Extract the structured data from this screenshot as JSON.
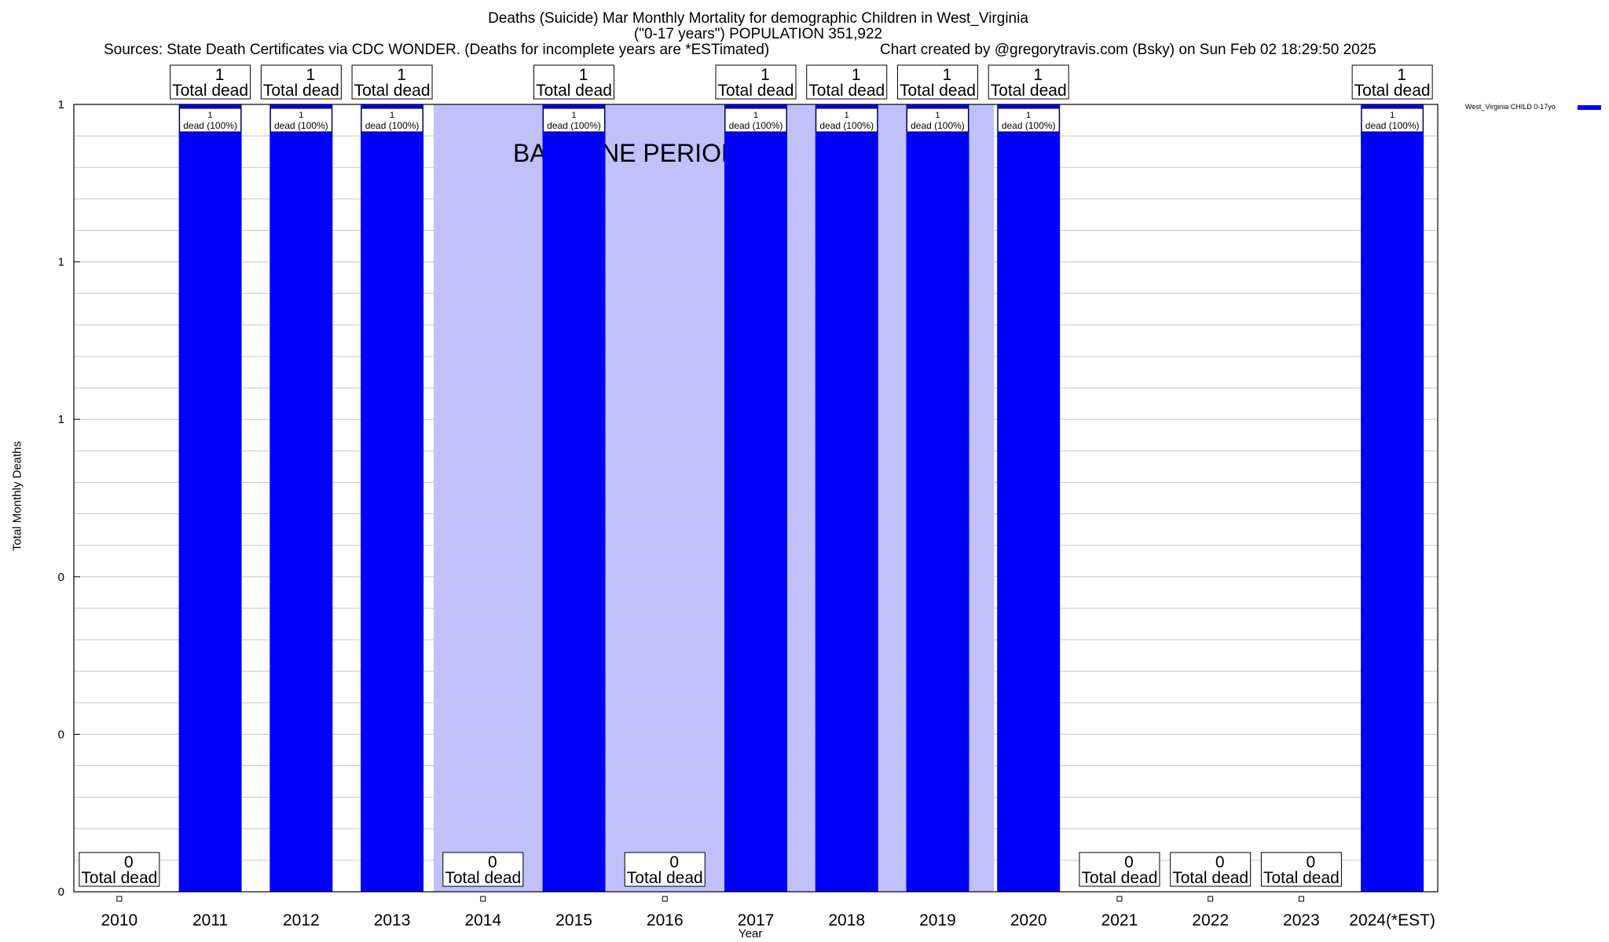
{
  "titles": {
    "line1": "Deaths (Suicide) Mar Monthly Mortality for demographic Children in West_Virginia",
    "line2": "(\"0-17 years\") POPULATION 351,922",
    "sources": "Sources: State Death Certificates via CDC WONDER. (Deaths for incomplete years are *ESTimated)",
    "credit": "Chart created by @gregorytravis.com (Bsky) on Sun Feb 02 18:29:50 2025"
  },
  "legend": {
    "label": "West_Virginia CHILD 0-17yo"
  },
  "colors": {
    "bar": "#0000ff",
    "baseline": "#c0c0ff",
    "grid": "#c8c8c8"
  },
  "chart_data": {
    "type": "bar",
    "title": "Deaths (Suicide) Mar Monthly Mortality for demographic Children in West_Virginia",
    "xlabel": "Year",
    "ylabel": "Total Monthly Deaths",
    "ylim": [
      0,
      1
    ],
    "y_tick_labels": [
      "0",
      "0",
      "0",
      "1",
      "1",
      "1"
    ],
    "grid": true,
    "legend_position": "top-right",
    "baseline_label": "BASELINE PERIOD",
    "baseline_range": [
      "2014",
      "2020"
    ],
    "categories": [
      "2010",
      "2011",
      "2012",
      "2013",
      "2014",
      "2015",
      "2016",
      "2017",
      "2018",
      "2019",
      "2020",
      "2021",
      "2022",
      "2023",
      "2024(*EST)"
    ],
    "series": [
      {
        "name": "West_Virginia CHILD 0-17yo",
        "values": [
          0,
          1,
          1,
          1,
          0,
          1,
          0,
          1,
          1,
          1,
          1,
          0,
          0,
          0,
          1
        ]
      }
    ],
    "top_label_suffix": "Total dead",
    "bar_label_suffix": "dead (100%)"
  }
}
